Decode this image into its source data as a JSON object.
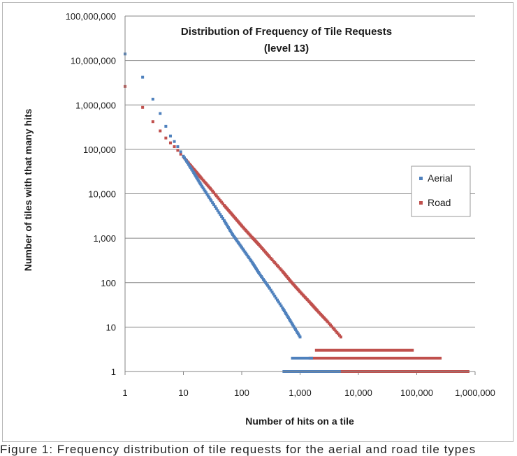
{
  "chart_data": {
    "type": "scatter",
    "title": "Distribution of Frequency of Tile Requests",
    "subtitle": "(level 13)",
    "xlabel": "Number of hits on a tile",
    "ylabel": "Number of tiles with that many hits",
    "xscale": "log",
    "yscale": "log",
    "xlim": [
      1,
      1000000
    ],
    "ylim": [
      1,
      100000000
    ],
    "x_tick_labels": [
      "1",
      "10",
      "100",
      "1,000",
      "10,000",
      "100,000",
      "1,000,000"
    ],
    "y_tick_labels": [
      "1",
      "10",
      "100",
      "1,000",
      "10,000",
      "100,000",
      "1,000,000",
      "10,000,000",
      "100,000,000"
    ],
    "grid": "horizontal",
    "legend_position": "right",
    "series": [
      {
        "name": "Aerial",
        "color": "#4f81bd",
        "points": [
          [
            1,
            14000000
          ],
          [
            2,
            4200000
          ],
          [
            3,
            1350000
          ],
          [
            4,
            640000
          ],
          [
            5,
            330000
          ],
          [
            6,
            200000
          ],
          [
            7,
            150000
          ],
          [
            8,
            115000
          ],
          [
            9,
            88000
          ],
          [
            10,
            70000
          ],
          [
            15,
            30000
          ],
          [
            20,
            16000
          ],
          [
            30,
            7000
          ],
          [
            50,
            2500
          ],
          [
            70,
            1200
          ],
          [
            100,
            620
          ],
          [
            150,
            290
          ],
          [
            200,
            160
          ],
          [
            300,
            75
          ],
          [
            500,
            27
          ],
          [
            700,
            13
          ],
          [
            1000,
            6
          ]
        ],
        "tail_x_range": [
          500,
          5000
        ]
      },
      {
        "name": "Road",
        "color": "#c0504d",
        "points": [
          [
            1,
            2600000
          ],
          [
            2,
            880000
          ],
          [
            3,
            420000
          ],
          [
            4,
            260000
          ],
          [
            5,
            180000
          ],
          [
            6,
            140000
          ],
          [
            7,
            115000
          ],
          [
            8,
            95000
          ],
          [
            9,
            78000
          ],
          [
            10,
            68000
          ],
          [
            15,
            36000
          ],
          [
            20,
            23000
          ],
          [
            30,
            12500
          ],
          [
            50,
            5500
          ],
          [
            70,
            3300
          ],
          [
            100,
            1900
          ],
          [
            150,
            1050
          ],
          [
            200,
            700
          ],
          [
            300,
            380
          ],
          [
            500,
            180
          ],
          [
            700,
            105
          ],
          [
            1000,
            62
          ],
          [
            1500,
            35
          ],
          [
            2000,
            23
          ],
          [
            3000,
            13
          ],
          [
            5000,
            6
          ]
        ],
        "tail_x_range": [
          1000,
          800000
        ]
      }
    ]
  },
  "caption": "Figure 1: Frequency distribution of tile requests for the aerial and road tile types"
}
